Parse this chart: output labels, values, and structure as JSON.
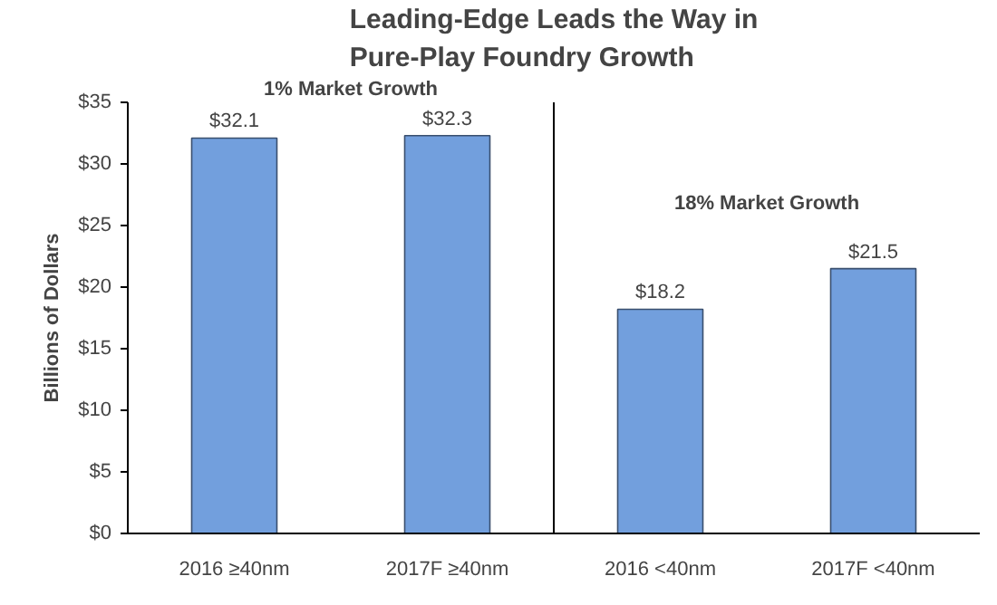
{
  "chart_data": {
    "type": "bar",
    "title": "Leading-Edge Leads the Way in\nPure-Play Foundry Growth",
    "ylabel": "Billions of Dollars",
    "categories": [
      "2016 ≥40nm",
      "2017F ≥40nm",
      "2016 <40nm",
      "2017F <40nm"
    ],
    "values": [
      32.1,
      32.3,
      18.2,
      21.5
    ],
    "color": "#729fdd",
    "value_labels": [
      "$32.1",
      "$32.3",
      "$18.2",
      "$21.5"
    ],
    "ylim": [
      0,
      35
    ],
    "yticks": [
      {
        "value": 0,
        "label": "$0"
      },
      {
        "value": 5,
        "label": "$5"
      },
      {
        "value": 10,
        "label": "$10"
      },
      {
        "value": 15,
        "label": "$15"
      },
      {
        "value": 20,
        "label": "$20"
      },
      {
        "value": 25,
        "label": "$25"
      },
      {
        "value": 30,
        "label": "$30"
      },
      {
        "value": 35,
        "label": "$35"
      }
    ],
    "annotations": [
      "1% Market Growth",
      "18% Market Growth"
    ],
    "grid": false
  }
}
